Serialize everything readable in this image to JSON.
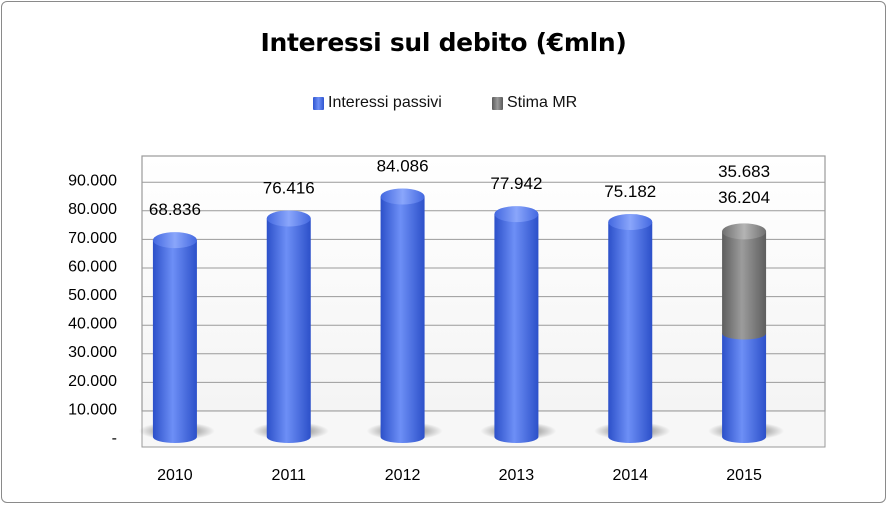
{
  "chart_data": {
    "type": "bar",
    "title": "Interessi sul debito (€mln)",
    "categories": [
      "2010",
      "2011",
      "2012",
      "2013",
      "2014",
      "2015"
    ],
    "series": [
      {
        "name": "Interessi passivi",
        "values": [
          68.836,
          76.416,
          84.086,
          77.942,
          75.182,
          36.204
        ],
        "color": "#4d72e8"
      },
      {
        "name": "Stima MR",
        "values": [
          0,
          0,
          0,
          0,
          0,
          35.683
        ],
        "color": "#7c7c7c"
      }
    ],
    "data_labels": [
      "68.836",
      "76.416",
      "84.086",
      "77.942",
      "75.182",
      "35.683",
      "36.204"
    ],
    "stacked": true,
    "ylim": [
      0,
      90
    ],
    "y_ticks": [
      "-",
      "10.000",
      "20.000",
      "30.000",
      "40.000",
      "50.000",
      "60.000",
      "70.000",
      "80.000",
      "90.000"
    ],
    "y_tick_values": [
      0,
      10,
      20,
      30,
      40,
      50,
      60,
      70,
      80,
      90
    ],
    "grid": true,
    "legend_position": "top",
    "xlabel": "",
    "ylabel": ""
  }
}
